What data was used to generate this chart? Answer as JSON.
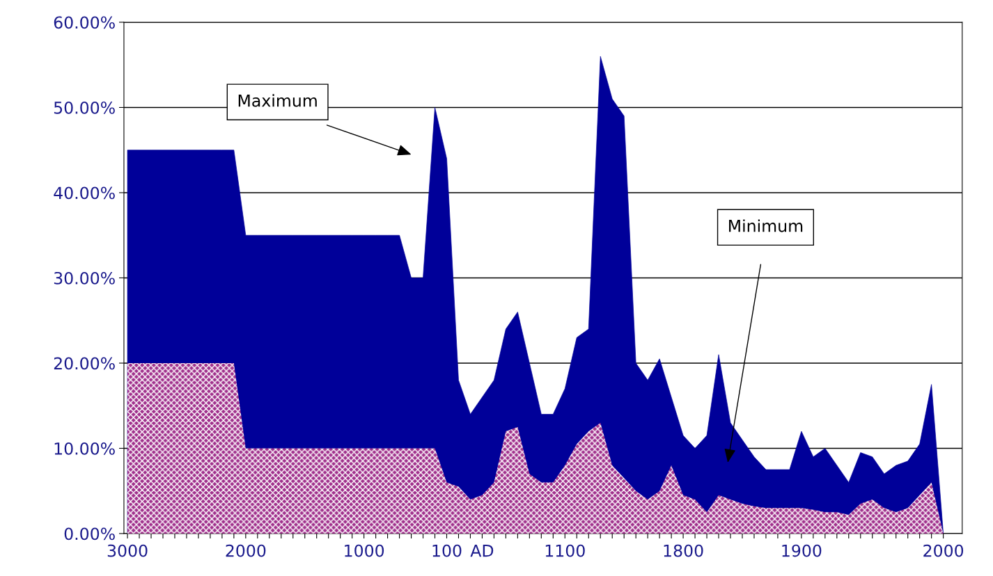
{
  "chart_data": {
    "type": "area",
    "categories": [
      "3000",
      null,
      null,
      null,
      null,
      null,
      null,
      null,
      null,
      null,
      "2000",
      null,
      null,
      null,
      null,
      null,
      null,
      null,
      null,
      null,
      "1000",
      null,
      null,
      null,
      null,
      null,
      null,
      "100",
      null,
      null,
      "AD",
      null,
      null,
      null,
      null,
      null,
      null,
      "1100",
      null,
      null,
      null,
      null,
      null,
      null,
      null,
      null,
      null,
      "1800",
      null,
      null,
      null,
      null,
      null,
      null,
      null,
      null,
      null,
      "1900",
      null,
      null,
      null,
      null,
      null,
      null,
      null,
      null,
      null,
      null,
      null,
      "2000"
    ],
    "series": [
      {
        "name": null,
        "color": "#000099",
        "values": [
          45,
          45,
          45,
          45,
          45,
          45,
          45,
          45,
          45,
          45,
          35,
          35,
          35,
          35,
          35,
          35,
          35,
          35,
          35,
          35,
          35,
          35,
          35,
          35,
          30,
          30,
          50,
          44,
          18,
          14,
          16,
          18,
          24,
          26,
          20,
          14,
          14,
          17,
          23,
          24,
          56,
          51,
          49,
          20,
          18,
          20.5,
          16,
          11.5,
          10,
          11.5,
          21,
          13,
          11,
          9,
          7.5,
          7.5,
          7.5,
          12,
          9,
          10,
          8,
          6,
          9.5,
          9,
          7,
          8,
          8.5,
          10.5,
          17.5,
          0
        ]
      },
      {
        "name": null,
        "color": "#a0308c",
        "values": [
          20,
          20,
          20,
          20,
          20,
          20,
          20,
          20,
          20,
          20,
          10,
          10,
          10,
          10,
          10,
          10,
          10,
          10,
          10,
          10,
          10,
          10,
          10,
          10,
          10,
          10,
          10,
          6,
          5.5,
          4,
          4.5,
          6,
          12,
          12.5,
          7,
          6,
          6,
          8,
          10.5,
          12,
          13,
          8,
          6.5,
          5,
          4,
          5,
          8,
          4.5,
          4,
          2.5,
          4.5,
          4,
          3.5,
          3.2,
          3,
          3,
          3,
          3,
          2.8,
          2.5,
          2.5,
          2.2,
          3.5,
          4,
          3,
          2.5,
          3,
          4.5,
          6,
          0
        ]
      }
    ],
    "ylim": [
      0,
      60
    ],
    "yticks": [
      {
        "value": 0,
        "label": "0.00%"
      },
      {
        "value": 10,
        "label": "10.00%"
      },
      {
        "value": 20,
        "label": "20.00%"
      },
      {
        "value": 30,
        "label": "30.00%"
      },
      {
        "value": 40,
        "label": "40.00%"
      },
      {
        "value": 50,
        "label": "50.00%"
      },
      {
        "value": 60,
        "label": "60.00%"
      }
    ],
    "grid": "y",
    "annotations": [
      "Maximum",
      "Minimum"
    ]
  }
}
